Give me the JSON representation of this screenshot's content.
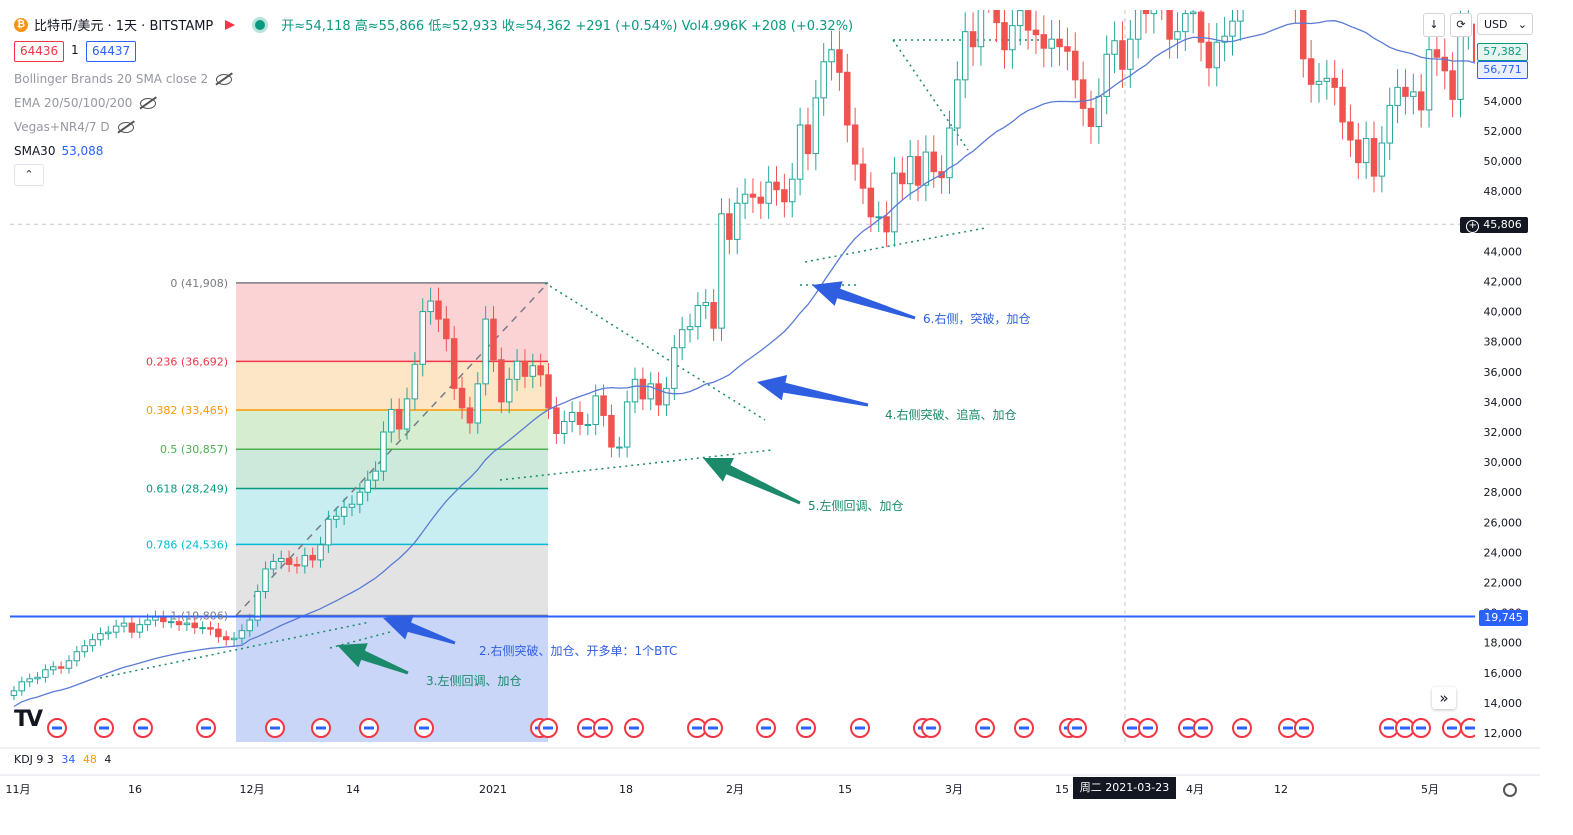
{
  "header": {
    "symbol": "比特币/美元 · 1天 · BITSTAMP",
    "ohlc": "开≈54,118 高≈55,866 低≈52,933 收≈54,362 +291 (+0.54%) Vol4.996K +208 (+0.32%)",
    "bid": "64436",
    "spread": "1",
    "ask": "64437",
    "currency": "USD"
  },
  "indicators": [
    {
      "label": "Bollinger Brands 20 SMA close 2"
    },
    {
      "label": "EMA 20/50/100/200"
    },
    {
      "label": "Vegas+NR4/7 D"
    }
  ],
  "sma": {
    "label": "SMA30",
    "value": "53,088"
  },
  "kdj": {
    "label": "KDJ 9 3",
    "k": "34",
    "d": "48",
    "j": "4"
  },
  "axis_badges": {
    "upper": "57,382",
    "middle": "56,771",
    "cursor": "45,806",
    "line": "19,745"
  },
  "date_badge": "周二 2021-03-23",
  "colors": {
    "up": "#26a69a",
    "down": "#ef5350",
    "sma": "#5b7bd5",
    "hline": "#2962ff",
    "arrow_blue": "#2f5fe0",
    "arrow_green": "#1a8a6b"
  },
  "chart_data": {
    "type": "candlestick",
    "title": "",
    "ylabel": "",
    "xlabel": "",
    "ylim": [
      11500,
      64000
    ],
    "y_ticks": [
      12000,
      14000,
      16000,
      18000,
      20000,
      22000,
      24000,
      26000,
      28000,
      30000,
      32000,
      34000,
      36000,
      38000,
      40000,
      42000,
      44000,
      46000,
      48000,
      50000,
      52000,
      54000
    ],
    "x_ticks": [
      "11月",
      "16",
      "12月",
      "14",
      "2021",
      "18",
      "2月",
      "15",
      "3月",
      "15",
      "4月",
      "12",
      "5月"
    ],
    "series": [
      {
        "close": [
          14800,
          15400,
          15600,
          15700,
          16200,
          16400,
          16300,
          16800,
          17400,
          17800,
          18200,
          18600,
          18700,
          19100,
          19300,
          18700,
          19200,
          19500,
          19700,
          19400,
          19400,
          19200,
          19300,
          19000,
          19000,
          18900,
          18400,
          18200,
          18300,
          18800,
          19500,
          21400,
          22900,
          23400,
          23600,
          23200,
          23100,
          23800,
          23500,
          24500,
          26200,
          26400,
          27000,
          27200,
          28000,
          28800,
          29400,
          32000,
          33500,
          32200,
          34200,
          36500,
          40000,
          40700,
          39500,
          38200,
          34900,
          33600,
          32600,
          35200,
          39500,
          36800,
          34000,
          35500,
          36700,
          35700,
          36400,
          35800,
          33600,
          31900,
          32700,
          33300,
          32500,
          32500,
          34400,
          33100,
          31000,
          31000,
          34000,
          35500,
          34200,
          35200,
          33800,
          34900,
          37600,
          38800,
          39000,
          40400,
          40600,
          38900,
          46500,
          44800,
          47200,
          47800,
          47600,
          47200,
          48600,
          48100,
          47300,
          48800,
          52400,
          50500,
          54200,
          56600,
          57400,
          55900,
          52400,
          49800,
          48200,
          46300,
          46300,
          45300,
          49200,
          48500,
          50300,
          48400,
          50600,
          49300,
          48900,
          52200,
          55400,
          58600,
          57600,
          61300,
          61200,
          59200,
          57400,
          59000,
          60000,
          58700,
          58400,
          57500,
          58100,
          57600,
          57300,
          55400,
          53500,
          52300,
          54300,
          57100,
          58000,
          56100,
          58100,
          60200,
          59800,
          63000,
          60700,
          58100,
          58600,
          59800,
          59900,
          57900,
          56200,
          57900,
          58300,
          59300,
          61600,
          63300,
          63100,
          62300,
          65000,
          63500,
          64000,
          60500,
          56800,
          55100,
          55300,
          55500,
          54900,
          52600,
          51400,
          49900,
          51500,
          49000,
          51200,
          53700,
          54900,
          54300,
          54600,
          53400,
          57400,
          56900,
          56000,
          54100,
          58700,
          59100,
          56600,
          57300
        ],
        "name": "BTC/USD"
      },
      {
        "name": "SMA30",
        "values": "30-day simple moving average of close"
      }
    ],
    "fib_levels": [
      {
        "ratio": "0",
        "label": "0 (41,908)",
        "value": 41908,
        "color": "#787b86"
      },
      {
        "ratio": "0.236",
        "label": "0.236 (36,692)",
        "value": 36692,
        "color": "#f23645"
      },
      {
        "ratio": "0.382",
        "label": "0.382 (33,465)",
        "value": 33465,
        "color": "#ff9800"
      },
      {
        "ratio": "0.5",
        "label": "0.5 (30,857)",
        "value": 30857,
        "color": "#4caf50"
      },
      {
        "ratio": "0.618",
        "label": "0.618 (28,249)",
        "value": 28249,
        "color": "#089981"
      },
      {
        "ratio": "0.786",
        "label": "0.786 (24,536)",
        "value": 24536,
        "color": "#00bcd4"
      },
      {
        "ratio": "1",
        "label": "1 (19,806)",
        "value": 19806,
        "color": "#787b86"
      }
    ],
    "horizontal_line": 19745,
    "annotations": [
      {
        "text": "2.右侧突破、加仓、开多单：1个BTC",
        "color": "#2f5fe0"
      },
      {
        "text": "3.左侧回调、加仓",
        "color": "#1a8a6b"
      },
      {
        "text": "4.右侧突破、追高、加仓",
        "color": "#1a8a6b"
      },
      {
        "text": "5.左侧回调、加仓",
        "color": "#1a8a6b"
      },
      {
        "text": "6.右侧，突破，加仓",
        "color": "#2f5fe0"
      }
    ]
  }
}
